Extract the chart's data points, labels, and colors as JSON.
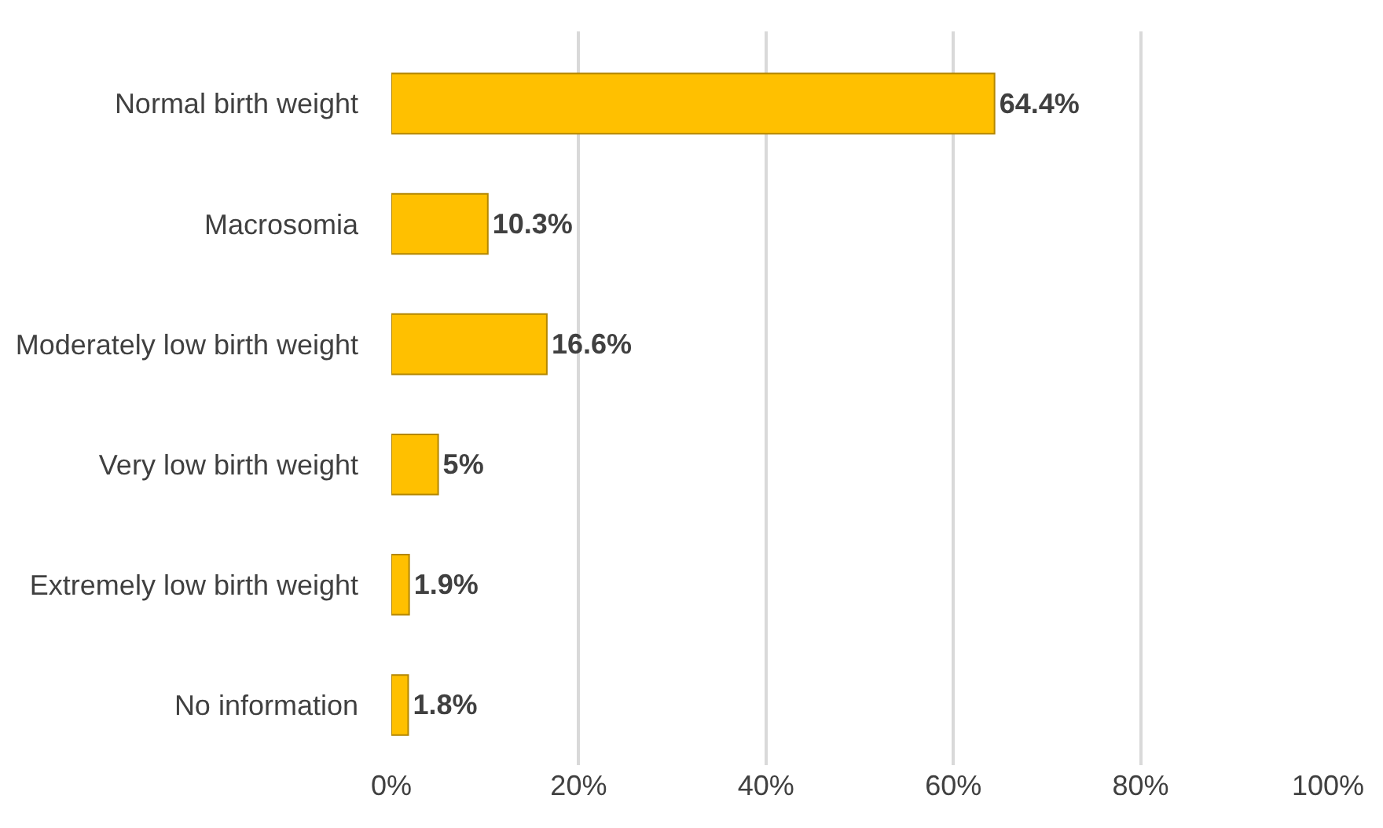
{
  "chart_data": {
    "type": "bar",
    "orientation": "horizontal",
    "categories": [
      "Normal birth weight",
      "Macrosomia",
      "Moderately low birth weight",
      "Very low birth weight",
      "Extremely low birth weight",
      "No information"
    ],
    "values": [
      64.4,
      10.3,
      16.6,
      5,
      1.9,
      1.8
    ],
    "value_labels": [
      "64.4%",
      "10.3%",
      "16.6%",
      "5%",
      "1.9%",
      "1.8%"
    ],
    "color": "#ffc000",
    "xlim": [
      0,
      100
    ],
    "xticks": [
      {
        "value": 0,
        "label": "0%"
      },
      {
        "value": 20,
        "label": "20%"
      },
      {
        "value": 40,
        "label": "40%"
      },
      {
        "value": 60,
        "label": "60%"
      },
      {
        "value": 80,
        "label": "80%"
      },
      {
        "value": 100,
        "label": "100%"
      }
    ],
    "grid": "x",
    "legend": false
  }
}
